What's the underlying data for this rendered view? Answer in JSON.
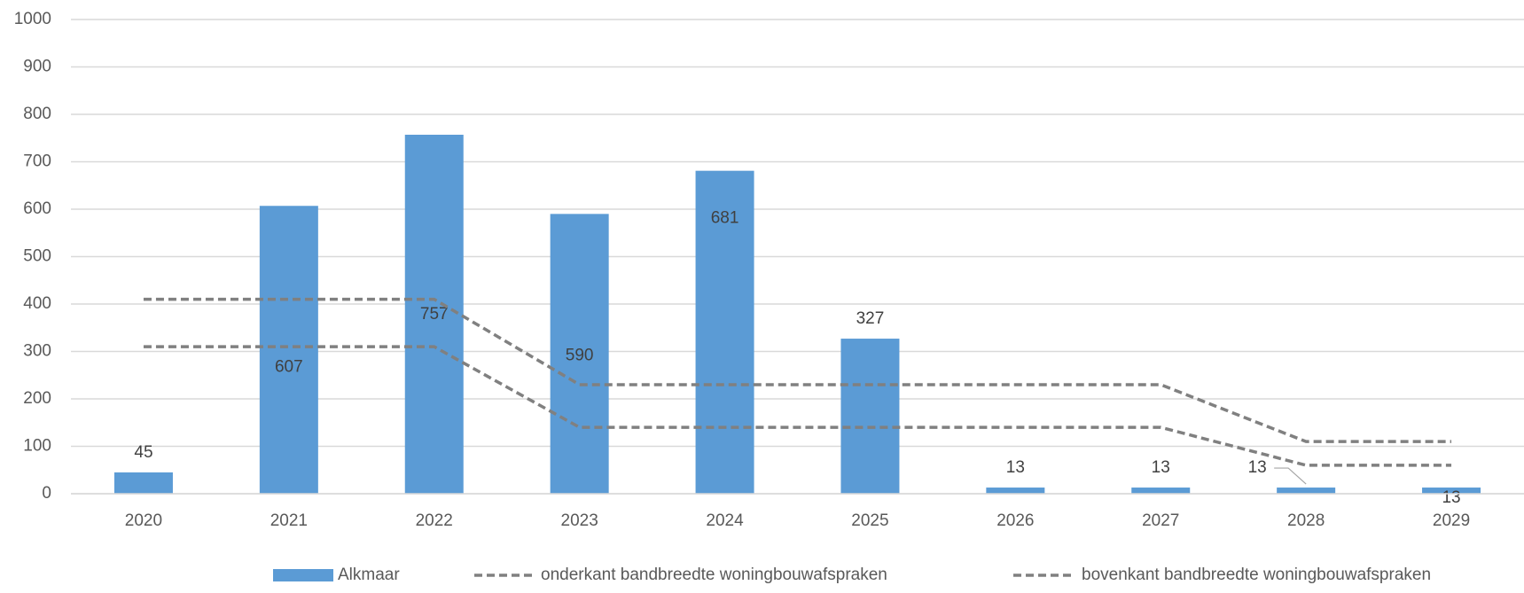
{
  "chart_data": {
    "type": "bar",
    "categories": [
      "2020",
      "2021",
      "2022",
      "2023",
      "2024",
      "2025",
      "2026",
      "2027",
      "2028",
      "2029"
    ],
    "series": [
      {
        "name": "Alkmaar",
        "type": "bar",
        "color": "#5b9bd5",
        "values": [
          45,
          607,
          757,
          590,
          681,
          327,
          13,
          13,
          13,
          13
        ]
      },
      {
        "name": "onderkant bandbreedte woningbouwafspraken",
        "type": "line",
        "dashed": true,
        "color": "#808080",
        "values": [
          310,
          310,
          310,
          140,
          140,
          140,
          140,
          140,
          60,
          60
        ]
      },
      {
        "name": "bovenkant bandbreedte woningbouwafspraken",
        "type": "line",
        "dashed": true,
        "color": "#808080",
        "values": [
          410,
          410,
          410,
          230,
          230,
          230,
          230,
          230,
          110,
          110
        ]
      }
    ],
    "ylim": [
      0,
      1000
    ],
    "yticks": [
      0,
      100,
      200,
      300,
      400,
      500,
      600,
      700,
      800,
      900,
      1000
    ],
    "grid": true,
    "legend": "bottom"
  }
}
